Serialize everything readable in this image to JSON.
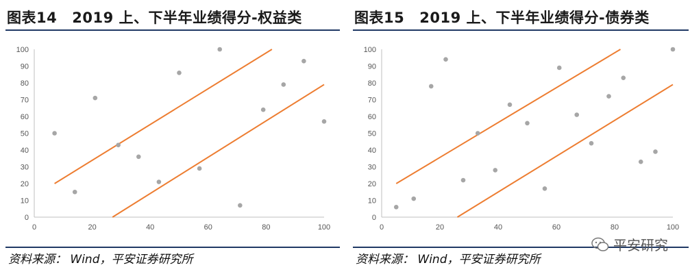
{
  "charts": [
    {
      "title_num": "图表14",
      "title_text": "2019 上、下半年业绩得分-权益类",
      "source": "资料来源：  Wind，平安证券研究所",
      "chart_data": {
        "type": "scatter",
        "xlim": [
          0,
          100
        ],
        "ylim": [
          0,
          100
        ],
        "xticks": [
          0,
          20,
          40,
          60,
          80,
          100
        ],
        "yticks": [
          0,
          10,
          20,
          30,
          40,
          50,
          60,
          70,
          80,
          90,
          100
        ],
        "grid": false,
        "points": [
          {
            "x": 7,
            "y": 50
          },
          {
            "x": 14,
            "y": 15
          },
          {
            "x": 21,
            "y": 71
          },
          {
            "x": 29,
            "y": 43
          },
          {
            "x": 36,
            "y": 36
          },
          {
            "x": 43,
            "y": 21
          },
          {
            "x": 50,
            "y": 86
          },
          {
            "x": 57,
            "y": 29
          },
          {
            "x": 64,
            "y": 100
          },
          {
            "x": 71,
            "y": 7
          },
          {
            "x": 79,
            "y": 64
          },
          {
            "x": 86,
            "y": 79
          },
          {
            "x": 93,
            "y": 93
          },
          {
            "x": 100,
            "y": 57
          }
        ],
        "lines": [
          {
            "x": [
              7,
              82
            ],
            "y": [
              20,
              100
            ]
          },
          {
            "x": [
              27,
              100
            ],
            "y": [
              0,
              79
            ]
          }
        ],
        "point_color": "#a6a6a6",
        "line_color": "#ed7d31"
      }
    },
    {
      "title_num": "图表15",
      "title_text": "2019 上、下半年业绩得分-债券类",
      "source": "资料来源：  Wind，平安证券研究所",
      "watermark": "平安研究",
      "chart_data": {
        "type": "scatter",
        "xlim": [
          0,
          100
        ],
        "ylim": [
          0,
          100
        ],
        "xticks": [
          0,
          20,
          40,
          60,
          80,
          100
        ],
        "yticks": [
          0,
          10,
          20,
          30,
          40,
          50,
          60,
          70,
          80,
          90,
          100
        ],
        "grid": false,
        "points": [
          {
            "x": 5,
            "y": 6
          },
          {
            "x": 11,
            "y": 11
          },
          {
            "x": 17,
            "y": 78
          },
          {
            "x": 22,
            "y": 94
          },
          {
            "x": 28,
            "y": 22
          },
          {
            "x": 33,
            "y": 50
          },
          {
            "x": 39,
            "y": 28
          },
          {
            "x": 44,
            "y": 67
          },
          {
            "x": 50,
            "y": 56
          },
          {
            "x": 56,
            "y": 17
          },
          {
            "x": 61,
            "y": 89
          },
          {
            "x": 67,
            "y": 61
          },
          {
            "x": 72,
            "y": 44
          },
          {
            "x": 78,
            "y": 72
          },
          {
            "x": 83,
            "y": 83
          },
          {
            "x": 89,
            "y": 33
          },
          {
            "x": 94,
            "y": 39
          },
          {
            "x": 100,
            "y": 100
          }
        ],
        "lines": [
          {
            "x": [
              5,
              82
            ],
            "y": [
              20,
              100
            ]
          },
          {
            "x": [
              26,
              100
            ],
            "y": [
              0,
              79
            ]
          }
        ],
        "point_color": "#a6a6a6",
        "line_color": "#ed7d31"
      }
    }
  ]
}
